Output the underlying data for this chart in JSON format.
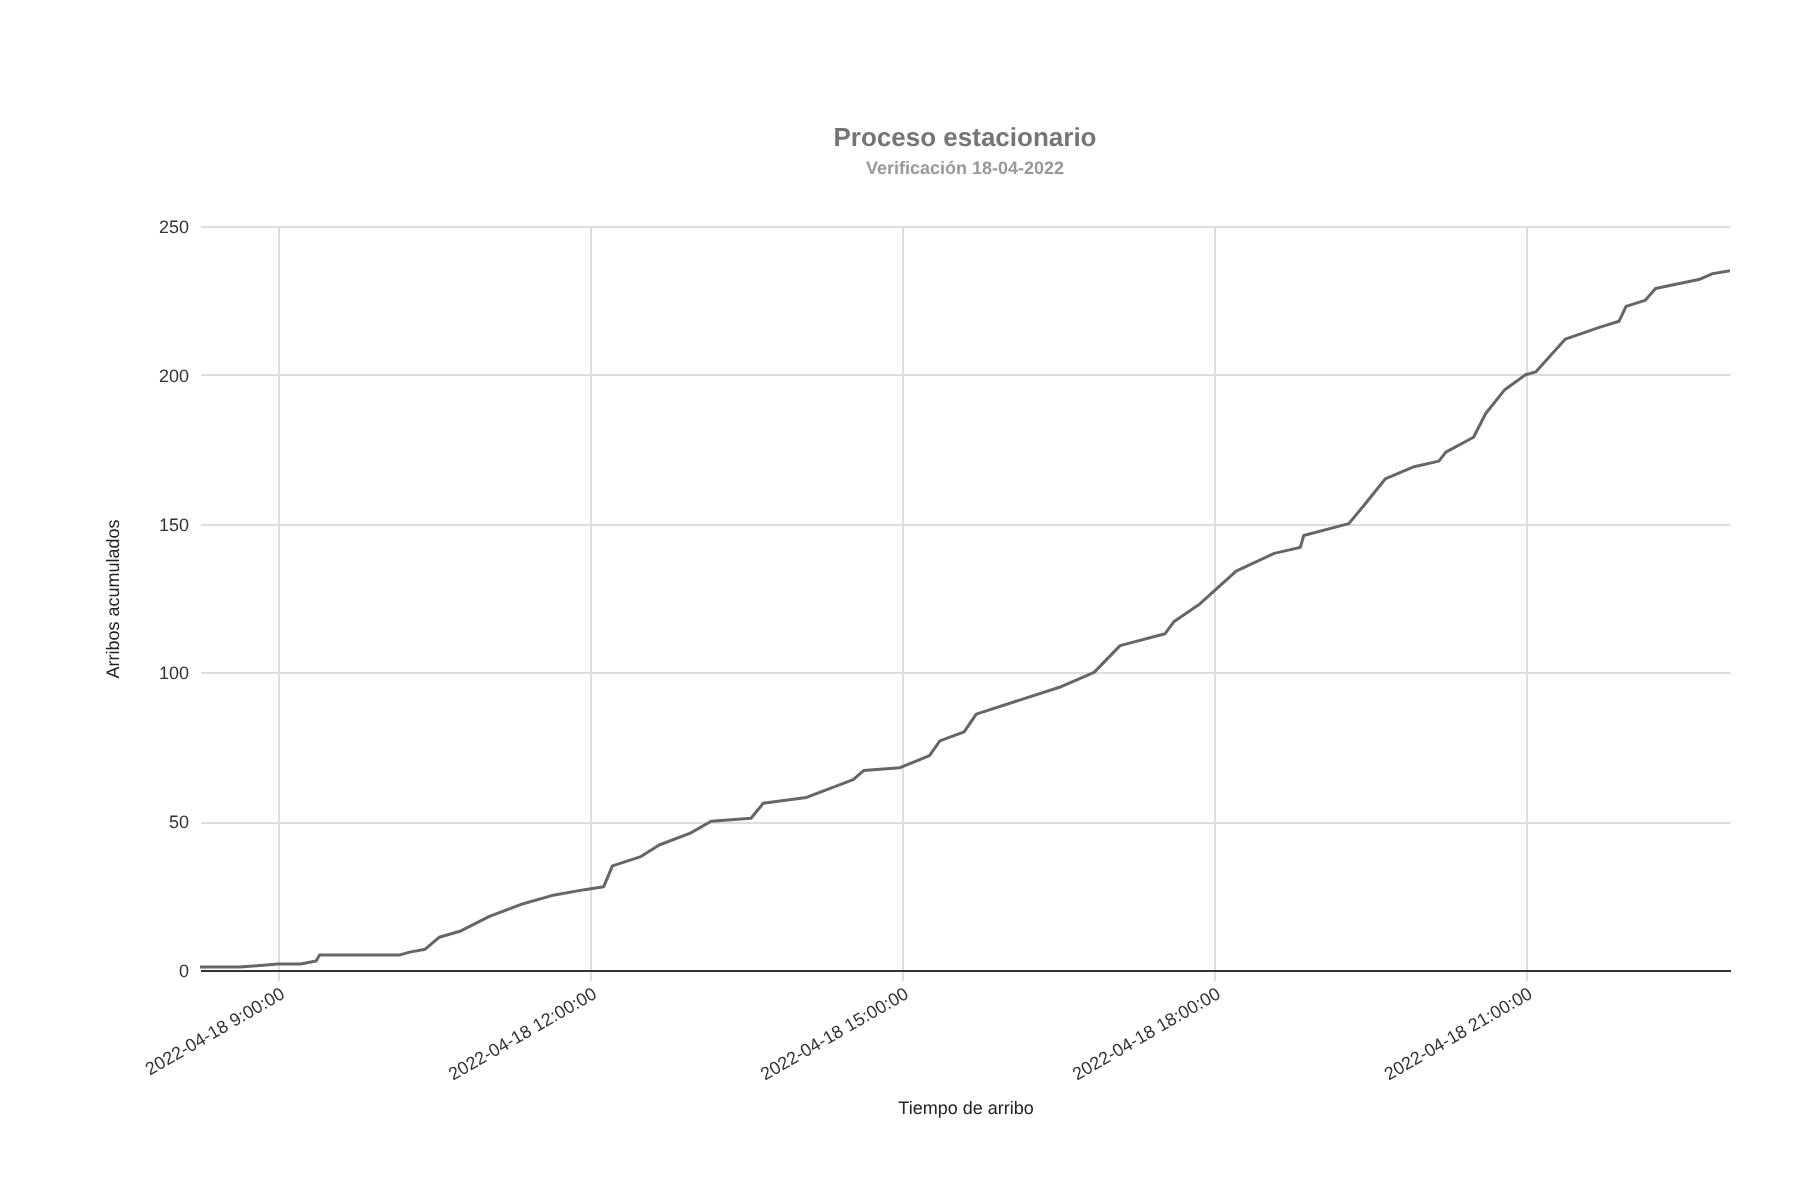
{
  "chart_data": {
    "type": "line",
    "title": "Proceso estacionario",
    "subtitle": "Verificación 18-04-2022",
    "xlabel": "Tiempo de arribo",
    "ylabel": "Arribos acumulados",
    "x": [
      "2022-04-18T08:15",
      "2022-04-18T08:38",
      "2022-04-18T09:00",
      "2022-04-18T09:13",
      "2022-04-18T09:22",
      "2022-04-18T09:24",
      "2022-04-18T10:10",
      "2022-04-18T10:16",
      "2022-04-18T10:25",
      "2022-04-18T10:33",
      "2022-04-18T10:45",
      "2022-04-18T11:02",
      "2022-04-18T11:20",
      "2022-04-18T11:38",
      "2022-04-18T11:57",
      "2022-04-18T12:08",
      "2022-04-18T12:13",
      "2022-04-18T12:29",
      "2022-04-18T12:40",
      "2022-04-18T12:58",
      "2022-04-18T13:10",
      "2022-04-18T13:33",
      "2022-04-18T13:40",
      "2022-04-18T14:05",
      "2022-04-18T14:32",
      "2022-04-18T14:38",
      "2022-04-18T14:59",
      "2022-04-18T15:16",
      "2022-04-18T15:22",
      "2022-04-18T15:36",
      "2022-04-18T15:43",
      "2022-04-18T16:31",
      "2022-04-18T16:51",
      "2022-04-18T17:06",
      "2022-04-18T17:32",
      "2022-04-18T17:37",
      "2022-04-18T17:52",
      "2022-04-18T18:13",
      "2022-04-18T18:35",
      "2022-04-18T18:50",
      "2022-04-18T18:52",
      "2022-04-18T19:18",
      "2022-04-18T19:28",
      "2022-04-18T19:39",
      "2022-04-18T19:55",
      "2022-04-18T20:10",
      "2022-04-18T20:14",
      "2022-04-18T20:30",
      "2022-04-18T20:37",
      "2022-04-18T20:48",
      "2022-04-18T21:00",
      "2022-04-18T21:06",
      "2022-04-18T21:23",
      "2022-04-18T21:43",
      "2022-04-18T21:54",
      "2022-04-18T21:58",
      "2022-04-18T22:09",
      "2022-04-18T22:15",
      "2022-04-18T22:40",
      "2022-04-18T22:48",
      "2022-04-18T22:58"
    ],
    "series": [
      {
        "color": "#666666",
        "values": [
          1,
          1,
          2,
          2,
          3,
          5,
          5,
          6,
          7,
          11,
          13,
          18,
          22,
          25,
          27,
          28,
          35,
          38,
          42,
          46,
          50,
          51,
          56,
          58,
          64,
          67,
          68,
          72,
          77,
          80,
          86,
          95,
          100,
          109,
          113,
          117,
          123,
          134,
          140,
          142,
          146,
          150,
          157,
          165,
          169,
          171,
          174,
          179,
          187,
          195,
          200,
          201,
          212,
          216,
          218,
          223,
          225,
          229,
          232,
          234,
          235
        ]
      }
    ],
    "xlim": [
      "2022-04-18T08:15",
      "2022-04-18T22:58"
    ],
    "xticks": [
      {
        "value": "2022-04-18T09:00",
        "label": "2022-04-18 9:00:00"
      },
      {
        "value": "2022-04-18T12:00",
        "label": "2022-04-18 12:00:00"
      },
      {
        "value": "2022-04-18T15:00",
        "label": "2022-04-18 15:00:00"
      },
      {
        "value": "2022-04-18T18:00",
        "label": "2022-04-18 18:00:00"
      },
      {
        "value": "2022-04-18T21:00",
        "label": "2022-04-18 21:00:00"
      }
    ],
    "ylim": [
      0,
      250
    ],
    "yticks": [
      0,
      50,
      100,
      150,
      200,
      250
    ],
    "grid": true,
    "legend": false
  }
}
